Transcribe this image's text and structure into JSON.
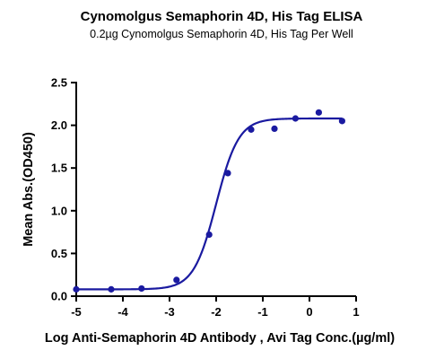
{
  "chart_data": {
    "type": "scatter",
    "title": "Cynomolgus Semaphorin 4D, His Tag ELISA",
    "subtitle": "0.2µg Cynomolgus Semaphorin 4D, His Tag Per Well",
    "xlabel": "Log Anti-Semaphorin 4D Antibody , Avi Tag Conc.(µg/ml)",
    "ylabel": "Mean Abs.(OD450)",
    "xlim": [
      -5,
      1
    ],
    "ylim": [
      0,
      2.5
    ],
    "x_ticks": [
      "-5",
      "-4",
      "-3",
      "-2",
      "-1",
      "0",
      "1"
    ],
    "y_ticks": [
      "0.0",
      "0.5",
      "1.0",
      "1.5",
      "2.0",
      "2.5"
    ],
    "grid": false,
    "colors": {
      "series": "#1a1aa0",
      "axis": "#000000"
    },
    "series": [
      {
        "x": [
          -5.0,
          -4.25,
          -3.6,
          -2.85,
          -2.15,
          -1.75,
          -1.25,
          -0.75,
          -0.3,
          0.2,
          0.7
        ],
        "y": [
          0.08,
          0.08,
          0.09,
          0.19,
          0.72,
          1.44,
          1.95,
          1.96,
          2.08,
          2.15,
          2.05
        ]
      }
    ],
    "fit": {
      "model": "4PL",
      "bottom": 0.08,
      "top": 2.08,
      "logEC50": -2.0,
      "hill": 1.8
    }
  }
}
